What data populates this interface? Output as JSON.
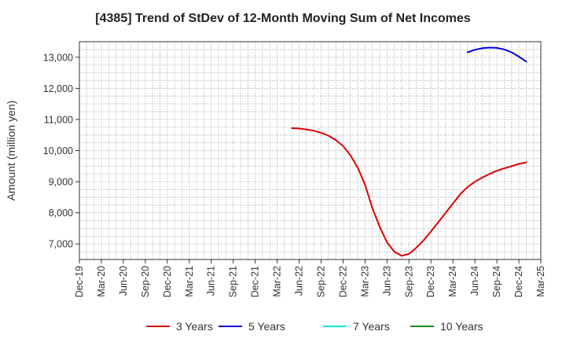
{
  "chart_data": {
    "type": "line",
    "title": "[4385]  Trend of StDev of 12-Month Moving Sum of Net Incomes",
    "xlabel": "",
    "ylabel": "Amount (million yen)",
    "ylim": [
      6500,
      13500
    ],
    "yticks": [
      7000,
      8000,
      9000,
      10000,
      11000,
      12000,
      13000
    ],
    "ytick_labels": [
      "7,000",
      "8,000",
      "9,000",
      "10,000",
      "11,000",
      "12,000",
      "13,000"
    ],
    "xticks": [
      "Dec-19",
      "Mar-20",
      "Jun-20",
      "Sep-20",
      "Dec-20",
      "Mar-21",
      "Jun-21",
      "Sep-21",
      "Dec-21",
      "Mar-22",
      "Jun-22",
      "Sep-22",
      "Dec-22",
      "Mar-23",
      "Jun-23",
      "Sep-23",
      "Dec-23",
      "Mar-24",
      "Jun-24",
      "Sep-24",
      "Dec-24",
      "Mar-25"
    ],
    "grid": true,
    "legend_position": "bottom",
    "series": [
      {
        "name": "3 Years",
        "color": "#dd0000",
        "points": [
          [
            "May-22",
            10720
          ],
          [
            "Jun-22",
            10710
          ],
          [
            "Jul-22",
            10680
          ],
          [
            "Aug-22",
            10640
          ],
          [
            "Sep-22",
            10570
          ],
          [
            "Oct-22",
            10480
          ],
          [
            "Nov-22",
            10340
          ],
          [
            "Dec-22",
            10150
          ],
          [
            "Jan-23",
            9850
          ],
          [
            "Feb-23",
            9450
          ],
          [
            "Mar-23",
            8900
          ],
          [
            "Apr-23",
            8150
          ],
          [
            "May-23",
            7550
          ],
          [
            "Jun-23",
            7050
          ],
          [
            "Jul-23",
            6750
          ],
          [
            "Aug-23",
            6620
          ],
          [
            "Sep-23",
            6680
          ],
          [
            "Oct-23",
            6880
          ],
          [
            "Nov-23",
            7120
          ],
          [
            "Dec-23",
            7400
          ],
          [
            "Jan-24",
            7700
          ],
          [
            "Feb-24",
            8000
          ],
          [
            "Mar-24",
            8300
          ],
          [
            "Apr-24",
            8600
          ],
          [
            "May-24",
            8830
          ],
          [
            "Jun-24",
            9000
          ],
          [
            "Jul-24",
            9130
          ],
          [
            "Aug-24",
            9250
          ],
          [
            "Sep-24",
            9350
          ],
          [
            "Oct-24",
            9430
          ],
          [
            "Nov-24",
            9500
          ],
          [
            "Dec-24",
            9570
          ],
          [
            "Jan-25",
            9620
          ]
        ]
      },
      {
        "name": "5 Years",
        "color": "#0000dd",
        "points": [
          [
            "May-24",
            13160
          ],
          [
            "Jun-24",
            13240
          ],
          [
            "Jul-24",
            13290
          ],
          [
            "Aug-24",
            13310
          ],
          [
            "Sep-24",
            13300
          ],
          [
            "Oct-24",
            13250
          ],
          [
            "Nov-24",
            13160
          ],
          [
            "Dec-24",
            13020
          ],
          [
            "Jan-25",
            12860
          ]
        ]
      },
      {
        "name": "7 Years",
        "color": "#00e5ee",
        "points": []
      },
      {
        "name": "10 Years",
        "color": "#1a8a1a",
        "points": []
      }
    ]
  }
}
